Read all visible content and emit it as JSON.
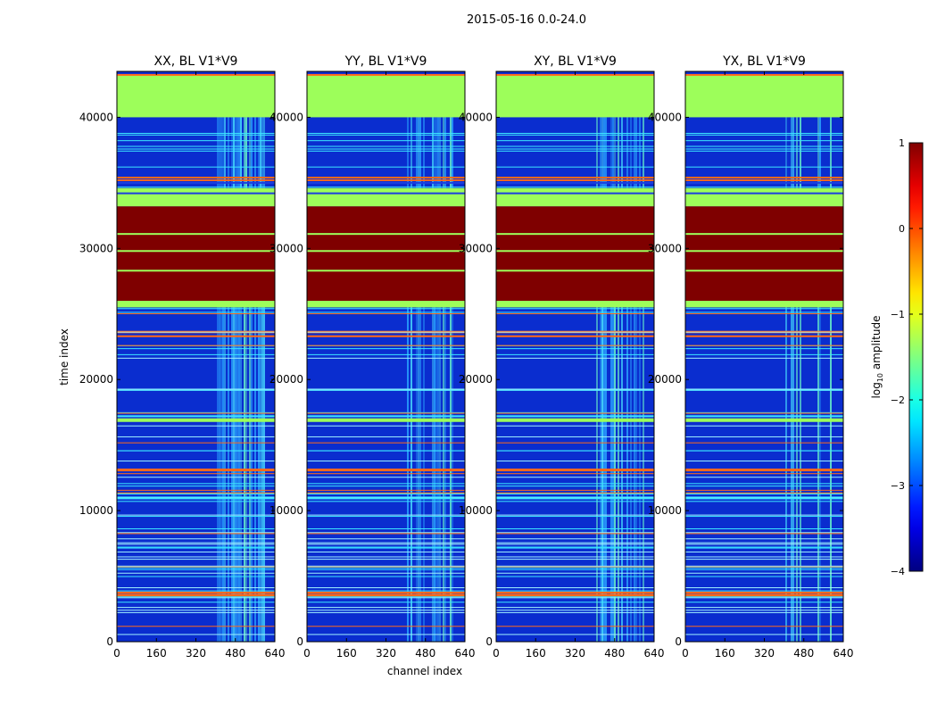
{
  "figure": {
    "suptitle": "2015-05-16 0.0-24.0",
    "xlabel": "channel index",
    "ylabel": "time index",
    "colorbar_label_prefix": "log",
    "colorbar_label_sub": "10",
    "colorbar_label_suffix": " amplitude",
    "colorbar_ticks": [
      "1",
      "0",
      "−1",
      "−2",
      "−3",
      "−4"
    ]
  },
  "chart_data": [
    {
      "type": "heatmap",
      "title": "XX, BL V1*V9",
      "xlabel": "channel index",
      "ylabel": "time index",
      "xlim": [
        0,
        640
      ],
      "ylim": [
        0,
        43500
      ],
      "x_ticks": [
        "0",
        "160",
        "320",
        "480",
        "640"
      ],
      "y_ticks": [
        "0",
        "10000",
        "20000",
        "30000",
        "40000"
      ],
      "colorbar": {
        "label": "log10 amplitude",
        "range": [
          -4,
          1
        ],
        "colormap": "jet"
      }
    },
    {
      "type": "heatmap",
      "title": "YY, BL V1*V9",
      "xlim": [
        0,
        640
      ],
      "ylim": [
        0,
        43500
      ],
      "x_ticks": [
        "0",
        "160",
        "320",
        "480",
        "640"
      ],
      "y_ticks": [
        "0",
        "10000",
        "20000",
        "30000",
        "40000"
      ]
    },
    {
      "type": "heatmap",
      "title": "XY, BL V1*V9",
      "xlim": [
        0,
        640
      ],
      "ylim": [
        0,
        43500
      ],
      "x_ticks": [
        "0",
        "160",
        "320",
        "480",
        "640"
      ],
      "y_ticks": [
        "0",
        "10000",
        "20000",
        "30000",
        "40000"
      ]
    },
    {
      "type": "heatmap",
      "title": "YX, BL V1*V9",
      "xlim": [
        0,
        640
      ],
      "ylim": [
        0,
        43500
      ],
      "x_ticks": [
        "0",
        "160",
        "320",
        "480",
        "640"
      ],
      "y_ticks": [
        "0",
        "10000",
        "20000",
        "30000",
        "40000"
      ]
    }
  ],
  "heatmap_description": {
    "noise_value": -3.1,
    "blocks": [
      {
        "t_start": 40000,
        "t_end": 43200,
        "value": -1.0
      },
      {
        "t_start": 33200,
        "t_end": 34600,
        "value": -1.0
      },
      {
        "t_start": 26000,
        "t_end": 33200,
        "value": 1.0
      },
      {
        "t_start": 25500,
        "t_end": 26000,
        "value": -1.0
      }
    ],
    "rfi_channel_range": [
      405,
      600
    ],
    "colors": {
      "dark_red": "#7f0000",
      "green": "#9dfe5a",
      "blue": "#0a2dcf",
      "cyan": "#3ce6ff",
      "orange": "#ff6a1a"
    }
  }
}
